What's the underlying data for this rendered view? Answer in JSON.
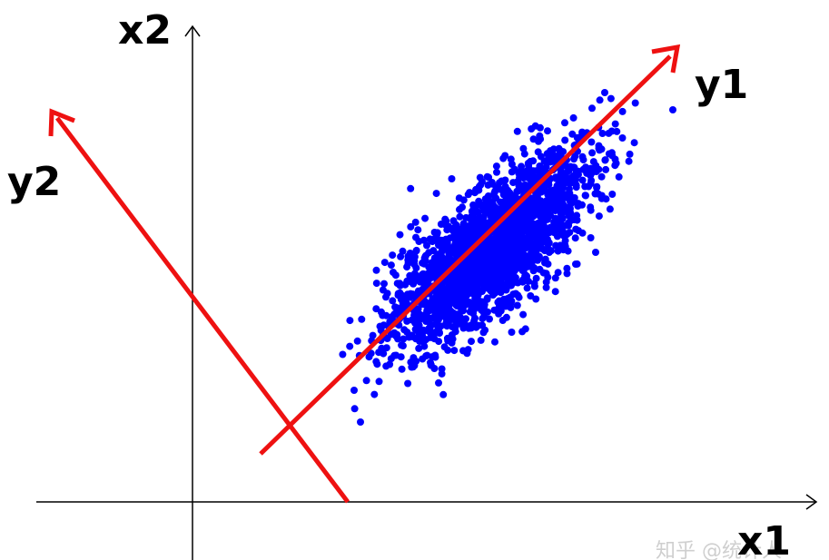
{
  "diagram": {
    "title": "",
    "axes": {
      "x1_label": "x1",
      "x2_label": "x2",
      "y1_label": "y1",
      "y2_label": "y2"
    },
    "colors": {
      "axis": "#000000",
      "principal_axes": "#ee1111",
      "points": "#0000ff",
      "watermark": "#cfcfcf"
    },
    "watermark": "知乎 @统计人",
    "scatter": {
      "shape": "elongated cluster along y1 axis",
      "seed": 7
    }
  }
}
